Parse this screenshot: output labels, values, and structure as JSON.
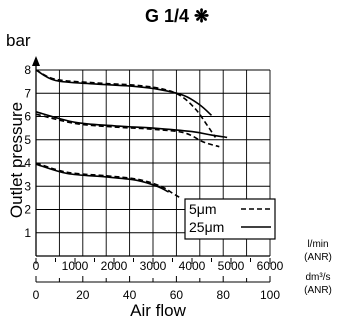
{
  "chart_data": {
    "type": "line",
    "title": "G 1/4 ❋",
    "ylabel": "Outlet pressure",
    "yunit": "bar",
    "xlabel": "Air flow",
    "x_unit_primary": [
      "l/min",
      "(ANR)"
    ],
    "x_unit_secondary": [
      "dm³/s",
      "(ANR)"
    ],
    "xlim": [
      0,
      6000
    ],
    "ylim": [
      0,
      8
    ],
    "x_ticks_primary": [
      "0",
      "1000",
      "2000",
      "3000",
      "4000",
      "5000",
      "6000"
    ],
    "x_ticks_secondary": [
      "0",
      "20",
      "40",
      "60",
      "80",
      "100"
    ],
    "x_ticks_secondary_values": [
      0,
      1200,
      2400,
      3600,
      4800,
      6000
    ],
    "y_ticks": [
      "1",
      "2",
      "3",
      "4",
      "5",
      "6",
      "7",
      "8"
    ],
    "grid": true,
    "legend_position": "bottom-right",
    "legend": [
      {
        "label": "5μm",
        "style": "dashed"
      },
      {
        "label": "25μm",
        "style": "solid"
      }
    ],
    "series": [
      {
        "label": "5μm",
        "style": "dashed",
        "points": [
          [
            0,
            8.0
          ],
          [
            500,
            7.6
          ],
          [
            1500,
            7.45
          ],
          [
            2500,
            7.35
          ],
          [
            3200,
            7.2
          ],
          [
            3700,
            6.9
          ],
          [
            4100,
            6.3
          ],
          [
            4400,
            5.6
          ],
          [
            4600,
            5.1
          ]
        ]
      },
      {
        "label": "25μm",
        "style": "solid",
        "points": [
          [
            0,
            8.0
          ],
          [
            500,
            7.55
          ],
          [
            1500,
            7.4
          ],
          [
            2500,
            7.3
          ],
          [
            3200,
            7.15
          ],
          [
            3800,
            6.9
          ],
          [
            4200,
            6.5
          ],
          [
            4500,
            6.05
          ]
        ]
      },
      {
        "label": "5μm",
        "style": "dashed",
        "points": [
          [
            0,
            6.1
          ],
          [
            1000,
            5.7
          ],
          [
            2000,
            5.55
          ],
          [
            3000,
            5.45
          ],
          [
            3800,
            5.3
          ],
          [
            4300,
            4.9
          ],
          [
            4700,
            4.7
          ]
        ]
      },
      {
        "label": "25μm",
        "style": "solid",
        "points": [
          [
            0,
            6.2
          ],
          [
            1000,
            5.75
          ],
          [
            2000,
            5.6
          ],
          [
            3000,
            5.5
          ],
          [
            4000,
            5.35
          ],
          [
            4500,
            5.2
          ],
          [
            4900,
            5.1
          ]
        ]
      },
      {
        "label": "5μm",
        "style": "dashed",
        "points": [
          [
            0,
            4.0
          ],
          [
            800,
            3.6
          ],
          [
            1800,
            3.45
          ],
          [
            2600,
            3.3
          ],
          [
            3200,
            3.0
          ],
          [
            3500,
            2.7
          ],
          [
            3700,
            2.5
          ]
        ]
      },
      {
        "label": "25μm",
        "style": "solid",
        "points": [
          [
            0,
            3.95
          ],
          [
            800,
            3.55
          ],
          [
            1800,
            3.4
          ],
          [
            2600,
            3.25
          ],
          [
            3100,
            3.0
          ],
          [
            3400,
            2.75
          ]
        ]
      }
    ]
  }
}
